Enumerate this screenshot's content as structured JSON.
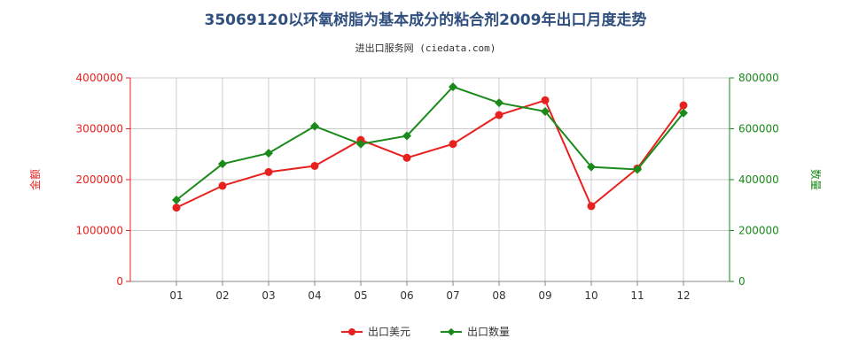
{
  "title": "35069120以环氧树脂为基本成分的粘合剂2009年出口月度走势",
  "subtitle": "进出口服务网 (ciedata.com)",
  "colors": {
    "amount": "#e8211e",
    "quantity": "#1a8a1a",
    "grid": "#cccccc",
    "axis": "#888888"
  },
  "chart_data": {
    "type": "line",
    "categories": [
      "01",
      "02",
      "03",
      "04",
      "05",
      "06",
      "07",
      "08",
      "09",
      "10",
      "11",
      "12"
    ],
    "ylabel_left": "金额",
    "ylabel_right": "数量",
    "ylim_left": [
      0,
      4000000
    ],
    "ylim_right": [
      0,
      800000
    ],
    "yticks_left": [
      "0",
      "1000000",
      "2000000",
      "3000000",
      "4000000"
    ],
    "yticks_right": [
      "0",
      "200000",
      "400000",
      "600000",
      "800000"
    ],
    "grid": true,
    "legend_position": "bottom",
    "series": [
      {
        "name": "出口美元",
        "axis": "left",
        "marker": "circle",
        "values": [
          1450000,
          1880000,
          2150000,
          2270000,
          2780000,
          2430000,
          2700000,
          3270000,
          3560000,
          1480000,
          2220000,
          3460000
        ]
      },
      {
        "name": "出口数量",
        "axis": "right",
        "marker": "diamond",
        "values": [
          320000,
          462000,
          504000,
          610000,
          540000,
          572000,
          765000,
          702000,
          668000,
          450000,
          440000,
          662000
        ]
      }
    ]
  }
}
